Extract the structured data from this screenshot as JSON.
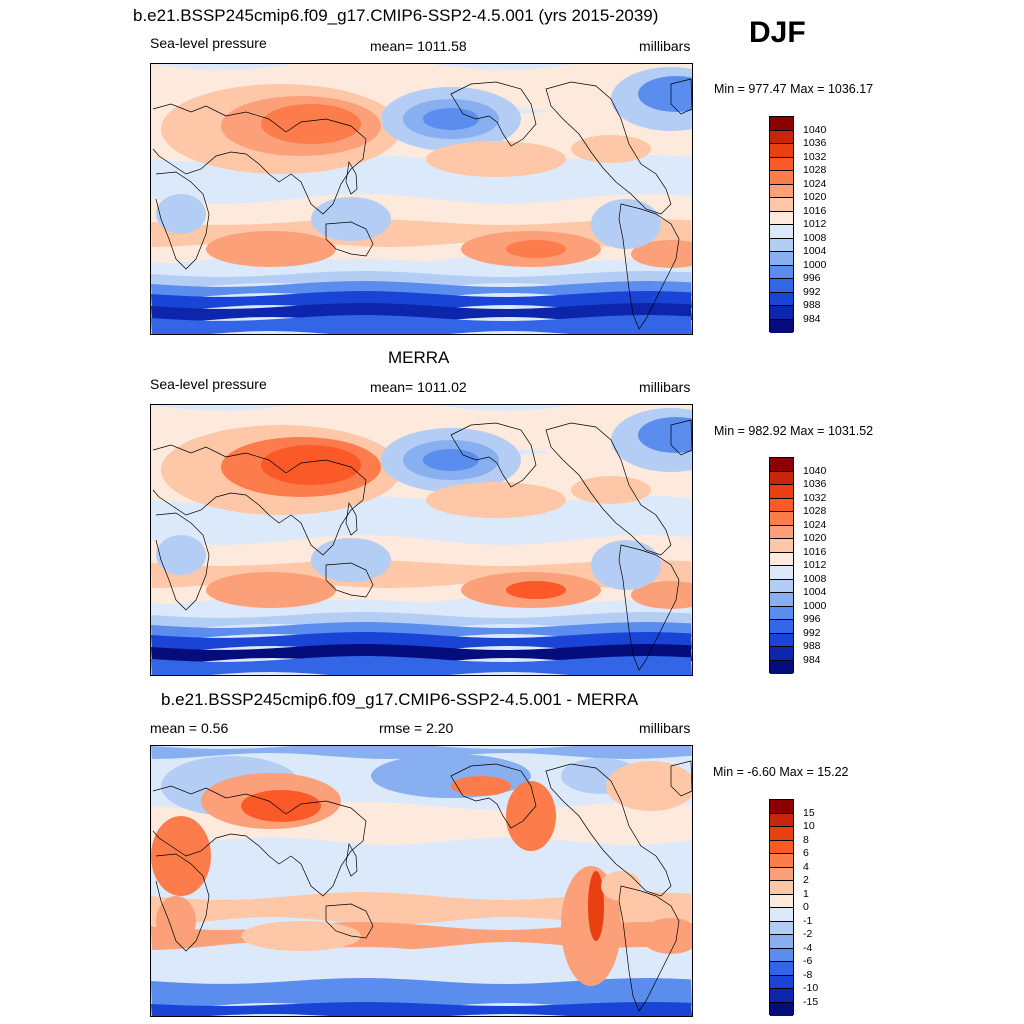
{
  "season": "DJF",
  "panels": [
    {
      "title": "b.e21.BSSP245cmip6.f09_g17.CMIP6-SSP2-4.5.001 (yrs 2015-2039)",
      "left_label": "Sea-level pressure",
      "center_label": "mean= 1011.58",
      "units": "millibars",
      "minmax": "Min = 977.47 Max = 1036.17"
    },
    {
      "title": "MERRA",
      "left_label": "Sea-level pressure",
      "center_label": "mean= 1011.02",
      "units": "millibars",
      "minmax": "Min = 982.92 Max = 1031.52"
    },
    {
      "title": "b.e21.BSSP245cmip6.f09_g17.CMIP6-SSP2-4.5.001 - MERRA",
      "left_label": "mean =   0.56",
      "center_label": "rmse =   2.20",
      "units": "millibars",
      "minmax": "Min =  -6.60 Max =  15.22"
    }
  ],
  "legend_slp": {
    "labels": [
      "1040",
      "1036",
      "1032",
      "1028",
      "1024",
      "1020",
      "1016",
      "1012",
      "1008",
      "1004",
      "1000",
      "996",
      "992",
      "988",
      "984"
    ],
    "colors": [
      "#8b0000",
      "#c8250a",
      "#e84010",
      "#fb5a28",
      "#fc7c4c",
      "#fca07a",
      "#fdc7a8",
      "#feeadc",
      "#dce9fb",
      "#b4cdf5",
      "#88aff0",
      "#5a8ded",
      "#3366e6",
      "#1a44d6",
      "#0c25aa",
      "#050c7c"
    ]
  },
  "legend_diff": {
    "labels": [
      "15",
      "10",
      "8",
      "6",
      "4",
      "2",
      "1",
      "0",
      "-1",
      "-2",
      "-4",
      "-6",
      "-8",
      "-10",
      "-15"
    ],
    "colors": [
      "#8b0000",
      "#c8250a",
      "#e84010",
      "#fb5a28",
      "#fc7c4c",
      "#fca07a",
      "#fdc7a8",
      "#feeadc",
      "#dce9fb",
      "#b4cdf5",
      "#88aff0",
      "#5a8ded",
      "#3366e6",
      "#1a44d6",
      "#0c25aa",
      "#050c7c"
    ]
  }
}
